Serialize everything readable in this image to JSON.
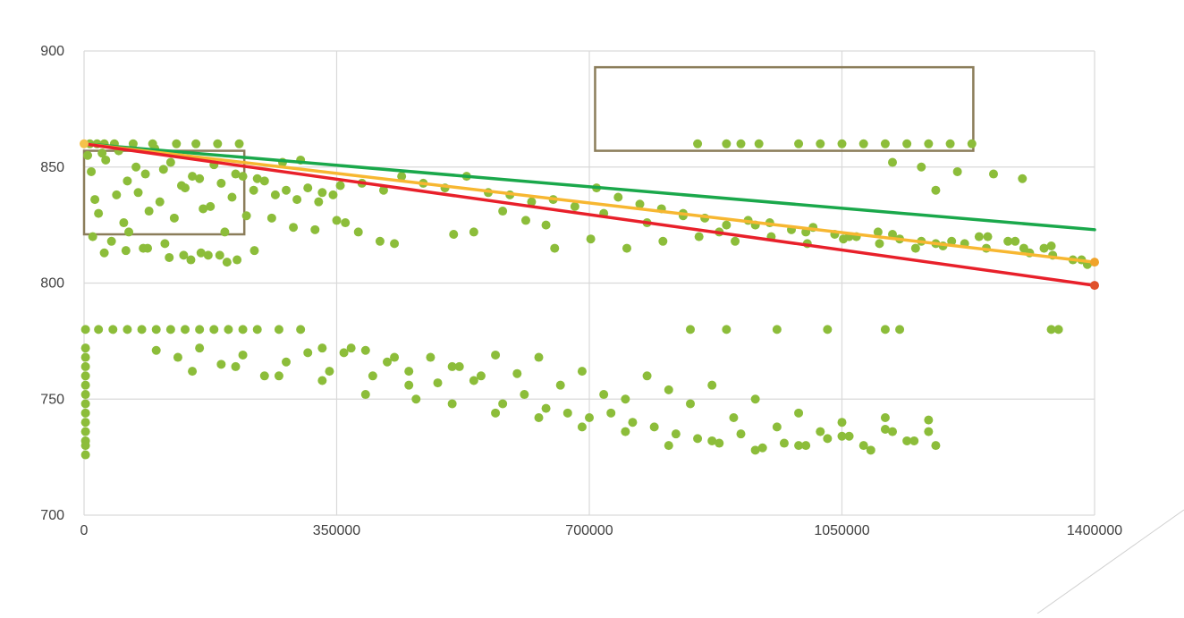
{
  "chart_data": {
    "type": "scatter",
    "title": "",
    "xlabel": "",
    "ylabel": "",
    "xlim": [
      0,
      1400000
    ],
    "ylim": [
      700,
      900
    ],
    "x_ticks": [
      0,
      350000,
      700000,
      1050000,
      1400000
    ],
    "x_tick_labels": [
      "0",
      "350000",
      "700000",
      "1050000",
      "1400000"
    ],
    "y_ticks": [
      700,
      750,
      800,
      850,
      900
    ],
    "y_tick_labels": [
      "700",
      "750",
      "800",
      "850",
      "900"
    ],
    "grid": true,
    "legend": "none",
    "colors": {
      "points": "#8cbd3a",
      "grid": "#d9d9d9",
      "box": "#8b7d5a",
      "line_green": "#1aa84b",
      "line_orange": "#f7b731",
      "line_red": "#e8202a",
      "end_orange": "#f0a32a",
      "end_red": "#e0502a",
      "start_dot": "#f5c24b"
    },
    "trend_lines": [
      {
        "color": "#1aa84b",
        "x": [
          0,
          1400000
        ],
        "y": [
          860,
          823
        ]
      },
      {
        "color": "#f7b731",
        "x": [
          0,
          1400000
        ],
        "y": [
          860,
          809
        ]
      },
      {
        "color": "#e8202a",
        "x": [
          0,
          1400000
        ],
        "y": [
          860,
          799
        ]
      }
    ],
    "highlight_boxes": [
      {
        "x": [
          0,
          222000
        ],
        "y": [
          821,
          857
        ]
      },
      {
        "x": [
          708000,
          1232000
        ],
        "y": [
          857,
          893
        ]
      }
    ],
    "series": [
      {
        "x": [
          5000,
          25000,
          48000,
          72000,
          98000,
          120000,
          150000,
          180000,
          210000,
          240000,
          275000,
          300000,
          10000,
          30000,
          60000,
          85000,
          110000,
          135000,
          160000,
          190000,
          220000,
          250000,
          280000,
          310000,
          330000,
          345000,
          15000,
          45000,
          75000,
          105000,
          140000,
          175000,
          205000,
          235000,
          265000,
          295000,
          325000,
          355000,
          385000,
          415000,
          20000,
          55000,
          90000,
          125000,
          165000,
          195000,
          225000,
          260000,
          290000,
          320000,
          350000,
          380000,
          410000,
          440000,
          470000,
          500000,
          530000,
          560000,
          590000,
          620000,
          650000,
          680000,
          710000,
          740000,
          770000,
          800000,
          830000,
          860000,
          890000,
          920000,
          950000,
          980000,
          1010000,
          1040000,
          1070000,
          1100000,
          1130000,
          1160000,
          1190000,
          1220000,
          1250000,
          1280000,
          1310000,
          1340000,
          1370000,
          1390000,
          12000,
          38000,
          62000,
          88000,
          112000,
          138000,
          162000,
          188000,
          212000,
          236000,
          362000,
          512000,
          612000,
          652000,
          702000,
          752000,
          802000,
          852000,
          902000,
          952000,
          1002000,
          1052000,
          1102000,
          1152000,
          1202000,
          1252000,
          1302000,
          1342000,
          1382000,
          430000,
          540000,
          580000,
          640000,
          720000,
          780000,
          830000,
          880000,
          930000,
          1000000,
          1060000,
          1120000,
          1180000,
          1240000,
          1290000,
          1330000,
          8000,
          18000,
          28000,
          42000,
          68000,
          95000,
          128000,
          155000,
          185000,
          215000,
          28000,
          58000,
          82000,
          118000,
          148000,
          172000,
          198000,
          850000,
          890000,
          910000,
          935000,
          990000,
          1020000,
          1050000,
          1080000,
          1110000,
          1140000,
          1170000,
          1200000,
          1230000,
          1120000,
          1160000,
          1210000,
          1260000,
          1300000,
          1180000
        ],
        "y": [
          855,
          856,
          857,
          850,
          858,
          852,
          846,
          851,
          847,
          845,
          852,
          853,
          848,
          853,
          844,
          847,
          849,
          842,
          845,
          843,
          846,
          844,
          840,
          841,
          839,
          838,
          836,
          838,
          839,
          835,
          841,
          833,
          837,
          840,
          838,
          836,
          835,
          842,
          843,
          840,
          830,
          826,
          831,
          828,
          832,
          822,
          829,
          828,
          824,
          823,
          827,
          822,
          818,
          846,
          843,
          841,
          846,
          839,
          838,
          835,
          836,
          833,
          841,
          837,
          834,
          832,
          829,
          828,
          825,
          827,
          826,
          823,
          824,
          821,
          820,
          822,
          819,
          818,
          816,
          817,
          815,
          818,
          813,
          816,
          810,
          808,
          820,
          818,
          822,
          815,
          817,
          812,
          813,
          812,
          810,
          814,
          826,
          821,
          827,
          815,
          819,
          815,
          818,
          820,
          818,
          820,
          817,
          819,
          817,
          815,
          818,
          820,
          815,
          812,
          810,
          817,
          822,
          831,
          825,
          830,
          826,
          830,
          822,
          825,
          822,
          820,
          821,
          817,
          820,
          818,
          815,
          860,
          860,
          860,
          860,
          860,
          860,
          860,
          860,
          860,
          860,
          813,
          814,
          815,
          811,
          810,
          812,
          809,
          860,
          860,
          860,
          860,
          860,
          860,
          860,
          860,
          860,
          860,
          860,
          860,
          860,
          852,
          850,
          848,
          847,
          845,
          840
        ]
      },
      {
        "x": [
          2000,
          2000,
          2000,
          2000,
          2000,
          2000,
          2000,
          2000,
          2000,
          2000,
          2000,
          2000,
          2000,
          2000,
          20000,
          40000,
          60000,
          80000,
          100000,
          120000,
          140000,
          160000,
          180000,
          200000,
          220000,
          240000,
          270000,
          300000,
          330000,
          360000,
          390000,
          420000,
          450000,
          480000,
          510000,
          540000,
          570000,
          600000,
          630000,
          660000,
          690000,
          720000,
          750000,
          780000,
          810000,
          840000,
          870000,
          900000,
          930000,
          960000,
          990000,
          1020000,
          1050000,
          1080000,
          1110000,
          1140000,
          1170000,
          100000,
          130000,
          160000,
          190000,
          220000,
          250000,
          280000,
          310000,
          340000,
          370000,
          400000,
          430000,
          460000,
          490000,
          520000,
          550000,
          580000,
          610000,
          640000,
          670000,
          700000,
          730000,
          760000,
          790000,
          820000,
          850000,
          880000,
          910000,
          940000,
          970000,
          1000000,
          1030000,
          1060000,
          1090000,
          1120000,
          1150000,
          1180000,
          1340000,
          1350000,
          840000,
          890000,
          960000,
          1030000,
          1110000,
          1130000,
          150000,
          210000,
          270000,
          330000,
          390000,
          450000,
          510000,
          570000,
          630000,
          690000,
          750000,
          810000,
          870000,
          930000,
          990000,
          1050000,
          1110000,
          1170000
        ],
        "y": [
          780,
          772,
          768,
          764,
          760,
          756,
          752,
          748,
          744,
          740,
          736,
          732,
          730,
          726,
          780,
          780,
          780,
          780,
          780,
          780,
          780,
          780,
          780,
          780,
          780,
          780,
          780,
          780,
          772,
          770,
          771,
          766,
          762,
          768,
          764,
          758,
          769,
          761,
          768,
          756,
          762,
          752,
          750,
          760,
          754,
          748,
          756,
          742,
          750,
          738,
          744,
          736,
          740,
          730,
          742,
          732,
          736,
          771,
          768,
          772,
          765,
          769,
          760,
          766,
          770,
          762,
          772,
          760,
          768,
          750,
          757,
          764,
          760,
          748,
          752,
          746,
          744,
          742,
          744,
          740,
          738,
          735,
          733,
          731,
          735,
          729,
          731,
          730,
          733,
          734,
          728,
          736,
          732,
          730,
          780,
          780,
          780,
          780,
          780,
          780,
          780,
          780,
          762,
          764,
          760,
          758,
          752,
          756,
          748,
          744,
          742,
          738,
          736,
          730,
          732,
          728,
          730,
          734,
          737,
          741
        ]
      }
    ]
  }
}
